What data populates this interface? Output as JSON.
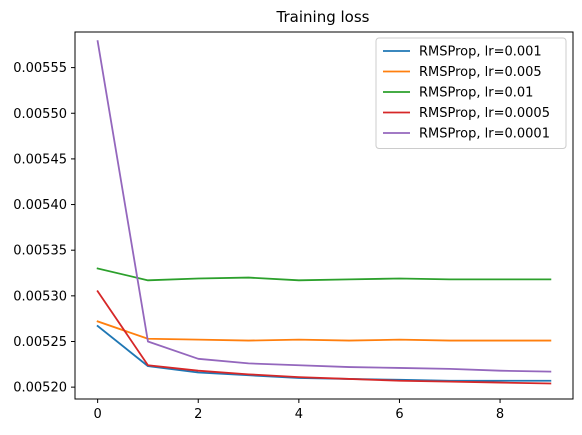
{
  "chart_data": {
    "type": "line",
    "title": "Training loss",
    "xlabel": "",
    "ylabel": "",
    "x": [
      0,
      1,
      2,
      3,
      4,
      5,
      6,
      7,
      8,
      9
    ],
    "xlim": [
      -0.45,
      9.45
    ],
    "ylim": [
      0.005187,
      0.005589
    ],
    "x_ticks": [
      0,
      2,
      4,
      6,
      8
    ],
    "y_ticks": [
      0.0052,
      0.00525,
      0.0053,
      0.00535,
      0.0054,
      0.00545,
      0.0055,
      0.00555
    ],
    "y_tick_labels": [
      "0.00520",
      "0.00525",
      "0.00530",
      "0.00535",
      "0.00540",
      "0.00545",
      "0.00550",
      "0.00555"
    ],
    "grid": false,
    "legend_position": "top-right",
    "series": [
      {
        "name": "RMSProp, lr=0.001",
        "color": "#1f77b4",
        "values": [
          0.005267,
          0.005223,
          0.005216,
          0.005213,
          0.00521,
          0.005209,
          0.005208,
          0.005207,
          0.005207,
          0.005207
        ]
      },
      {
        "name": "RMSProp, lr=0.005",
        "color": "#ff7f0e",
        "values": [
          0.005272,
          0.005253,
          0.005252,
          0.005251,
          0.005252,
          0.005251,
          0.005252,
          0.005251,
          0.005251,
          0.005251
        ]
      },
      {
        "name": "RMSProp, lr=0.01",
        "color": "#2ca02c",
        "values": [
          0.00533,
          0.005317,
          0.005319,
          0.00532,
          0.005317,
          0.005318,
          0.005319,
          0.005318,
          0.005318,
          0.005318
        ]
      },
      {
        "name": "RMSProp, lr=0.0005",
        "color": "#d62728",
        "values": [
          0.005305,
          0.005224,
          0.005218,
          0.005214,
          0.005211,
          0.005209,
          0.005207,
          0.005206,
          0.005205,
          0.005204
        ]
      },
      {
        "name": "RMSProp, lr=0.0001",
        "color": "#9467bd",
        "values": [
          0.005579,
          0.00525,
          0.005231,
          0.005226,
          0.005224,
          0.005222,
          0.005221,
          0.00522,
          0.005218,
          0.005217
        ]
      }
    ]
  }
}
